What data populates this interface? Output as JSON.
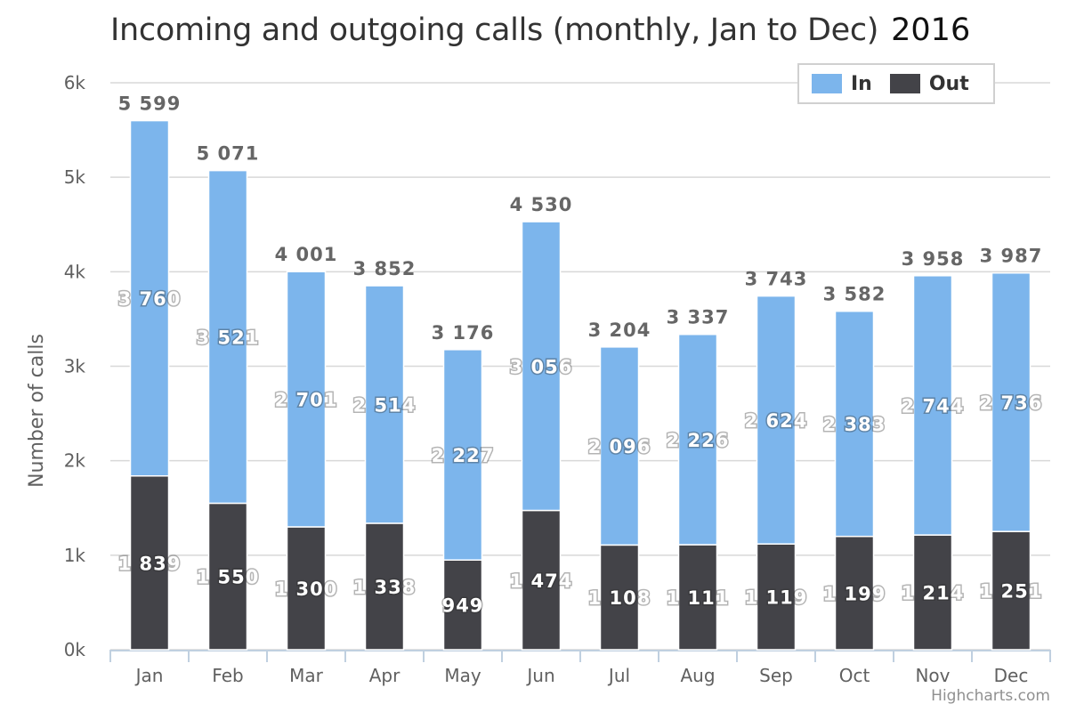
{
  "chart_data": {
    "type": "bar",
    "stacked": true,
    "title": "Incoming and outgoing calls (monthly, Jan to Dec)",
    "subtitle": "2016",
    "xlabel": "",
    "ylabel": "Number of calls",
    "ylim": [
      0,
      6000
    ],
    "y_ticks": [
      "0k",
      "1k",
      "2k",
      "3k",
      "4k",
      "5k",
      "6k"
    ],
    "y_tick_values": [
      0,
      1000,
      2000,
      3000,
      4000,
      5000,
      6000
    ],
    "categories": [
      "Jan",
      "Feb",
      "Mar",
      "Apr",
      "May",
      "Jun",
      "Jul",
      "Aug",
      "Sep",
      "Oct",
      "Nov",
      "Dec"
    ],
    "series": [
      {
        "name": "In",
        "color": "#7cb5ec",
        "values": [
          3760,
          3521,
          2701,
          2514,
          2227,
          3056,
          2096,
          2226,
          2624,
          2383,
          2744,
          2736
        ],
        "labels": [
          "3 760",
          "3 521",
          "2 701",
          "2 514",
          "2 227",
          "3 056",
          "2 096",
          "2 226",
          "2 624",
          "2 383",
          "2 744",
          "2 736"
        ]
      },
      {
        "name": "Out",
        "color": "#434348",
        "values": [
          1839,
          1550,
          1300,
          1338,
          949,
          1474,
          1108,
          1111,
          1119,
          1199,
          1214,
          1251
        ],
        "labels": [
          "1 839",
          "1 550",
          "1 300",
          "1 338",
          "949",
          "1 474",
          "1 108",
          "1 111",
          "1 119",
          "1 199",
          "1 214",
          "1 251"
        ]
      }
    ],
    "totals": [
      5599,
      5071,
      4001,
      3852,
      3176,
      4530,
      3204,
      3337,
      3743,
      3582,
      3958,
      3987
    ],
    "total_labels": [
      "5 599",
      "5 071",
      "4 001",
      "3 852",
      "3 176",
      "4 530",
      "3 204",
      "3 337",
      "3 743",
      "3 582",
      "3 958",
      "3 987"
    ],
    "grid": true,
    "legend_position": "top-right"
  },
  "credit": "Highcharts.com",
  "colors": {
    "grid": "#d8d8d8",
    "axis": "#c0d0e0"
  }
}
